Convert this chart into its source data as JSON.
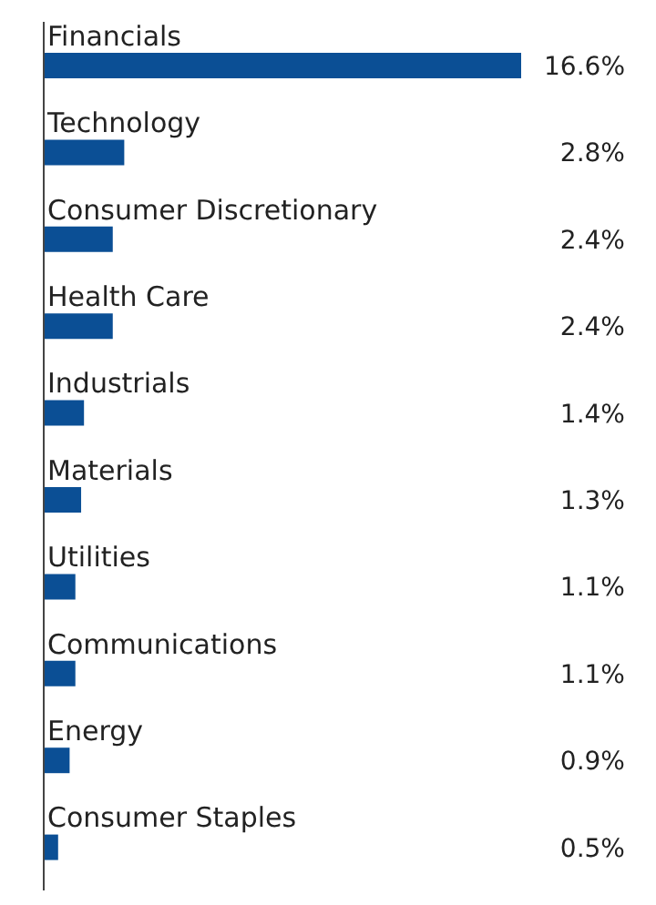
{
  "chart_data": {
    "type": "bar",
    "orientation": "horizontal",
    "categories": [
      "Financials",
      "Technology",
      "Consumer Discretionary",
      "Health Care",
      "Industrials",
      "Materials",
      "Utilities",
      "Communications",
      "Energy",
      "Consumer Staples"
    ],
    "values": [
      16.6,
      2.8,
      2.4,
      2.4,
      1.4,
      1.3,
      1.1,
      1.1,
      0.9,
      0.5
    ],
    "value_labels": [
      "16.6%",
      "2.8%",
      "2.4%",
      "2.4%",
      "1.4%",
      "1.3%",
      "1.1%",
      "1.1%",
      "0.9%",
      "0.5%"
    ],
    "color": "#0b4f95",
    "grid": false,
    "legend": false
  }
}
